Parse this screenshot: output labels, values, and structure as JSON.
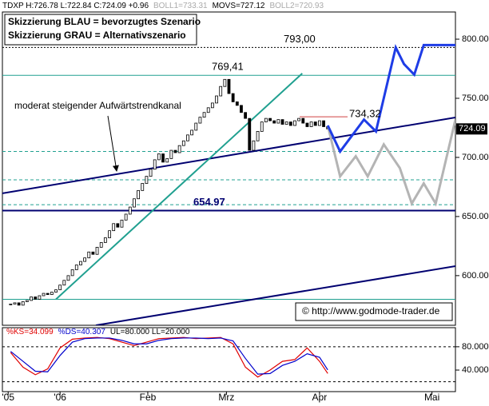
{
  "chart_data": [
    {
      "type": "candlestick",
      "title_parts": [
        {
          "text": "TDXP H:726.78 L:722.84 C:724.09 +0.96",
          "color": "#000000"
        },
        {
          "text": "BOLL1=733.31",
          "color": "#aaaaaa"
        },
        {
          "text": "MOVS=727.12",
          "color": "#000000"
        },
        {
          "text": "BOLL2=720.93",
          "color": "#aaaaaa"
        }
      ],
      "notes": [
        "Skizzierung BLAU = bevorzugtes Szenario",
        "Skizzierung GRAU = Alternativszenario"
      ],
      "trend_label": "moderat steigender Aufwärtstrendkanal",
      "source": "© http://www.godmode-trader.de",
      "xlim": [
        0,
        110
      ],
      "xticks": [
        {
          "value": 1.4,
          "label": "'05"
        },
        {
          "value": 14,
          "label": "'06"
        },
        {
          "value": 35.3,
          "label": "Feb"
        },
        {
          "value": 54.4,
          "label": "Mrz"
        },
        {
          "value": 77,
          "label": "Apr"
        },
        {
          "value": 104.3,
          "label": "Mai"
        }
      ],
      "ylim": [
        558,
        823
      ],
      "yticks": [
        {
          "value": 600,
          "label": "600.00"
        },
        {
          "value": 650,
          "label": "650.00"
        },
        {
          "value": 700,
          "label": "700.00"
        },
        {
          "value": 750,
          "label": "750.00"
        },
        {
          "value": 800,
          "label": "800.00"
        }
      ],
      "x": [
        2,
        3,
        4,
        5,
        6,
        7,
        8,
        9,
        10,
        11,
        12,
        13,
        14,
        15,
        16,
        17,
        18,
        19,
        20,
        21,
        22,
        23,
        24,
        25,
        26,
        27,
        28,
        29,
        30,
        31,
        32,
        33,
        34,
        35,
        36,
        37,
        38,
        39,
        40,
        41,
        42,
        43,
        44,
        45,
        46,
        47,
        48,
        49,
        50,
        51,
        52,
        53,
        54,
        55,
        56,
        57,
        58,
        59,
        60,
        61,
        62,
        63,
        64,
        65,
        66,
        67,
        68,
        69,
        70,
        71,
        72,
        73,
        74,
        75,
        76,
        77,
        78,
        79
      ],
      "values": [
        576,
        577,
        575,
        578,
        579,
        582,
        580,
        583,
        585,
        584,
        586,
        588,
        592,
        596,
        600,
        605,
        609,
        612,
        615,
        620,
        618,
        624,
        628,
        632,
        638,
        644,
        641,
        647,
        652,
        658,
        665,
        672,
        678,
        684,
        690,
        698,
        703,
        696,
        699,
        706,
        704,
        710,
        714,
        719,
        723,
        729,
        734,
        738,
        742,
        746,
        752,
        760,
        766,
        754,
        747,
        744,
        738,
        733,
        706,
        714,
        722,
        730,
        733,
        731,
        729,
        732,
        728,
        730,
        727,
        731,
        733,
        729,
        726,
        730,
        727,
        731,
        726,
        724.09
      ],
      "last_value_label": "724.09",
      "levels": [
        {
          "value": 793,
          "label": "793,00",
          "color": "#000000",
          "style": "dotted"
        },
        {
          "value": 769.41,
          "label": "769,41",
          "color": "#20a090",
          "style": "solid"
        },
        {
          "value": 705,
          "color": "#20a090",
          "style": "dashed"
        },
        {
          "value": 681,
          "color": "#20a090",
          "style": "dashed"
        },
        {
          "value": 660,
          "color": "#20a090",
          "style": "dashed"
        },
        {
          "value": 654.97,
          "label": "654.97",
          "color": "#000070",
          "style": "thick"
        },
        {
          "value": 580,
          "color": "#20a090",
          "style": "solid"
        }
      ],
      "marker_line": {
        "value": 734.32,
        "label": "734,32",
        "color": "#d04040"
      },
      "trendlines": [
        {
          "x": [
            0,
            110
          ],
          "y": [
            669.6,
            733.8
          ],
          "color": "#000070"
        },
        {
          "x": [
            22.7,
            110
          ],
          "y": [
            558,
            608
          ],
          "color": "#000070"
        },
        {
          "x": [
            13,
            72.8
          ],
          "y": [
            580,
            771
          ],
          "color": "#20a090"
        }
      ],
      "scenarios": [
        {
          "color": "#b4b4b4",
          "x": [
            79,
            82,
            85.8,
            88.7,
            92.6,
            96.5,
            99.4,
            102.3,
            105.2,
            110
          ],
          "y": [
            727,
            684,
            701,
            684,
            711,
            691,
            661,
            678,
            661,
            732
          ]
        },
        {
          "color": "#1e3ce6",
          "x": [
            79,
            82,
            87.8,
            90.7,
            95.5,
            97.5,
            100,
            102.3,
            110
          ],
          "y": [
            727,
            705,
            732,
            722,
            793,
            779,
            770,
            795,
            795
          ]
        }
      ]
    },
    {
      "type": "line",
      "title_parts": [
        {
          "text": "%KS=34.099",
          "color": "#e00000"
        },
        {
          "text": "%DS=40.307",
          "color": "#0000cc"
        },
        {
          "text": "UL=80.000 LL=20.000",
          "color": "#000000"
        }
      ],
      "ylim": [
        3,
        110
      ],
      "yticks": [
        {
          "value": 40,
          "label": "40.000"
        },
        {
          "value": 80,
          "label": "80.000"
        }
      ],
      "levels": [
        80,
        20
      ],
      "x": [
        2,
        5,
        8,
        11,
        14,
        17,
        20,
        23,
        26,
        29,
        32,
        35,
        38,
        41,
        44,
        47,
        50,
        53,
        56,
        59,
        62,
        65,
        68,
        71,
        74,
        77,
        79
      ],
      "series": [
        {
          "color": "#e00000",
          "values": [
            70,
            45,
            32,
            42,
            78,
            93,
            95,
            96,
            94,
            88,
            82,
            88,
            94,
            95,
            96,
            94,
            95,
            96,
            85,
            45,
            28,
            40,
            55,
            58,
            78,
            55,
            34.099
          ]
        },
        {
          "color": "#0000cc",
          "values": [
            72,
            55,
            38,
            37,
            65,
            88,
            94,
            95,
            95,
            91,
            85,
            85,
            91,
            94,
            95,
            95,
            94,
            95,
            90,
            60,
            33,
            34,
            48,
            55,
            68,
            62,
            40.307
          ]
        }
      ]
    }
  ]
}
